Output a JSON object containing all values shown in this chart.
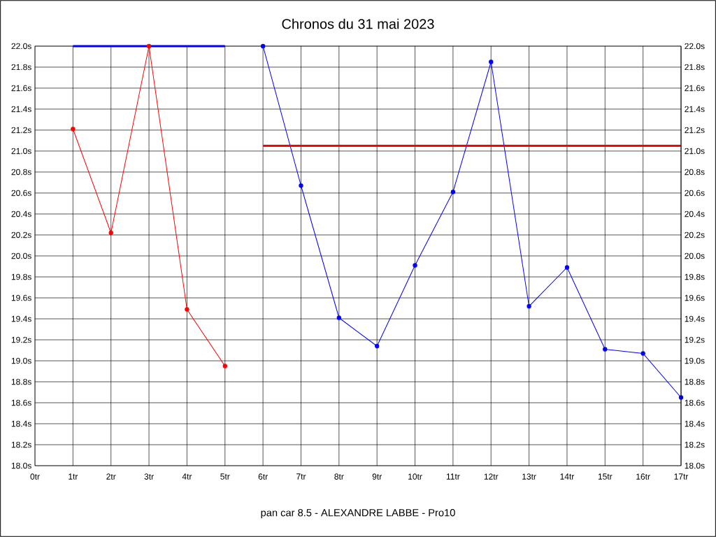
{
  "chart_data": {
    "type": "line",
    "title": "Chronos du 31 mai 2023",
    "annotations": [
      "pan car 8.5 - ALEXANDRE LABBE - Pro10"
    ],
    "series": [
      {
        "color": "#ff0000",
        "x": [
          1,
          2,
          3,
          4,
          5
        ],
        "values": [
          21.21,
          20.22,
          22.0,
          19.49,
          18.95
        ]
      },
      {
        "color": "#0000ff",
        "x": [
          6,
          7,
          8,
          9,
          10,
          11,
          12,
          13,
          14,
          15,
          16,
          17
        ],
        "values": [
          22.0,
          20.67,
          19.41,
          19.14,
          19.91,
          20.61,
          21.85,
          19.52,
          19.89,
          19.11,
          19.07,
          18.65
        ]
      },
      {
        "color": "#0000ff",
        "marker": "none",
        "x": [
          1,
          5
        ],
        "values": [
          22.0,
          22.0
        ]
      },
      {
        "color": "#ff0000",
        "marker": "none",
        "x": [
          6,
          17
        ],
        "values": [
          21.05,
          21.05
        ]
      }
    ],
    "xlim": [
      0,
      17
    ],
    "xticks": [
      {
        "value": 0,
        "label": "0tr"
      },
      {
        "value": 1,
        "label": "1tr"
      },
      {
        "value": 2,
        "label": "2tr"
      },
      {
        "value": 3,
        "label": "3tr"
      },
      {
        "value": 4,
        "label": "4tr"
      },
      {
        "value": 5,
        "label": "5tr"
      },
      {
        "value": 6,
        "label": "6tr"
      },
      {
        "value": 7,
        "label": "7tr"
      },
      {
        "value": 8,
        "label": "8tr"
      },
      {
        "value": 9,
        "label": "9tr"
      },
      {
        "value": 10,
        "label": "10tr"
      },
      {
        "value": 11,
        "label": "11tr"
      },
      {
        "value": 12,
        "label": "12tr"
      },
      {
        "value": 13,
        "label": "13tr"
      },
      {
        "value": 14,
        "label": "14tr"
      },
      {
        "value": 15,
        "label": "15tr"
      },
      {
        "value": 16,
        "label": "16tr"
      },
      {
        "value": 17,
        "label": "17tr"
      }
    ],
    "ylim": [
      18.0,
      22.0
    ],
    "yticks": [
      {
        "value": 18.0,
        "label": "18.0s"
      },
      {
        "value": 18.2,
        "label": "18.2s"
      },
      {
        "value": 18.4,
        "label": "18.4s"
      },
      {
        "value": 18.6,
        "label": "18.6s"
      },
      {
        "value": 18.8,
        "label": "18.8s"
      },
      {
        "value": 19.0,
        "label": "19.0s"
      },
      {
        "value": 19.2,
        "label": "19.2s"
      },
      {
        "value": 19.4,
        "label": "19.4s"
      },
      {
        "value": 19.6,
        "label": "19.6s"
      },
      {
        "value": 19.8,
        "label": "19.8s"
      },
      {
        "value": 20.0,
        "label": "20.0s"
      },
      {
        "value": 20.2,
        "label": "20.2s"
      },
      {
        "value": 20.4,
        "label": "20.4s"
      },
      {
        "value": 20.6,
        "label": "20.6s"
      },
      {
        "value": 20.8,
        "label": "20.8s"
      },
      {
        "value": 21.0,
        "label": "21.0s"
      },
      {
        "value": 21.2,
        "label": "21.2s"
      },
      {
        "value": 21.4,
        "label": "21.4s"
      },
      {
        "value": 21.6,
        "label": "21.6s"
      },
      {
        "value": 21.8,
        "label": "21.8s"
      },
      {
        "value": 22.0,
        "label": "22.0s"
      }
    ],
    "y2lim": [
      18.0,
      22.0
    ],
    "y2ticks": [
      {
        "value": 18.0,
        "label": "18.0s"
      },
      {
        "value": 18.2,
        "label": "18.2s"
      },
      {
        "value": 18.4,
        "label": "18.4s"
      },
      {
        "value": 18.6,
        "label": "18.6s"
      },
      {
        "value": 18.8,
        "label": "18.8s"
      },
      {
        "value": 19.0,
        "label": "19.0s"
      },
      {
        "value": 19.2,
        "label": "19.2s"
      },
      {
        "value": 19.4,
        "label": "19.4s"
      },
      {
        "value": 19.6,
        "label": "19.6s"
      },
      {
        "value": 19.8,
        "label": "19.8s"
      },
      {
        "value": 20.0,
        "label": "20.0s"
      },
      {
        "value": 20.2,
        "label": "20.2s"
      },
      {
        "value": 20.4,
        "label": "20.4s"
      },
      {
        "value": 20.6,
        "label": "20.6s"
      },
      {
        "value": 20.8,
        "label": "20.8s"
      },
      {
        "value": 21.0,
        "label": "21.0s"
      },
      {
        "value": 21.2,
        "label": "21.2s"
      },
      {
        "value": 21.4,
        "label": "21.4s"
      },
      {
        "value": 21.6,
        "label": "21.6s"
      },
      {
        "value": 21.8,
        "label": "21.8s"
      },
      {
        "value": 22.0,
        "label": "22.0s"
      }
    ],
    "grid": true,
    "marker": "circle",
    "line_style": "solid"
  }
}
